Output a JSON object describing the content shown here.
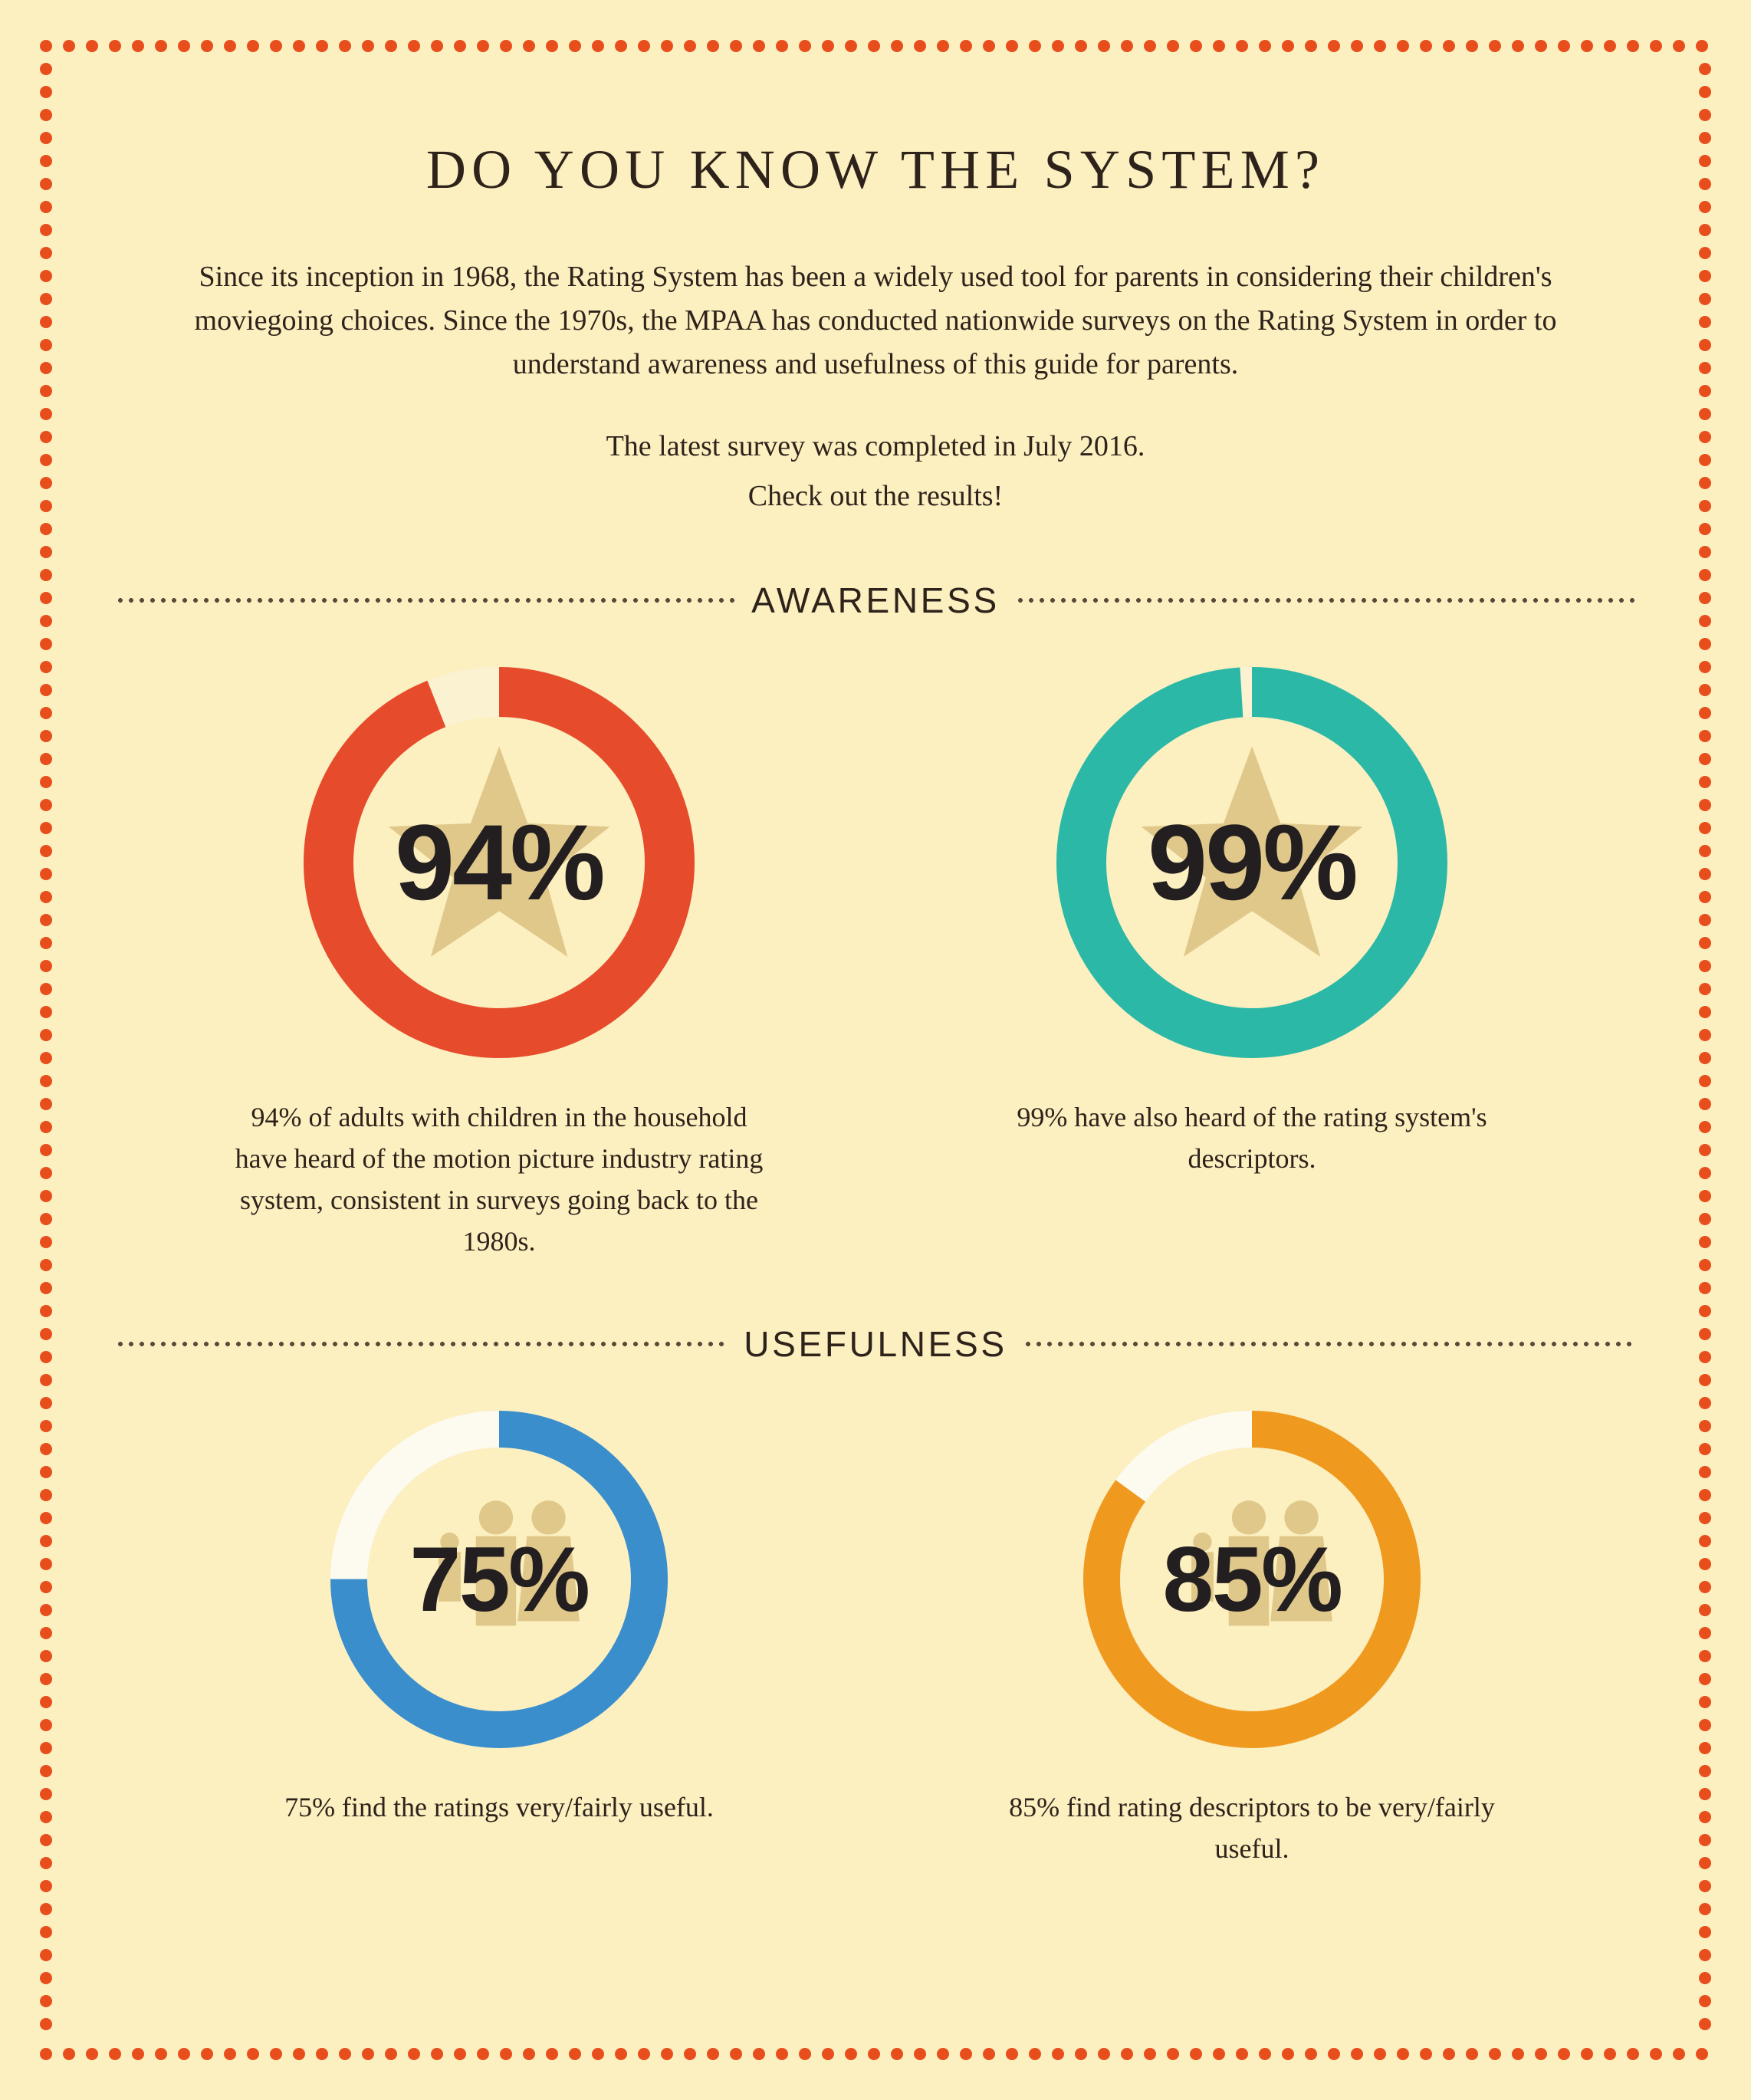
{
  "page": {
    "background_color": "#fcefc0",
    "border_dot_color": "#e84e1c",
    "border_dot_radius": 8,
    "border_dot_gap": 30,
    "text_color": "#2e231b"
  },
  "title": {
    "text": "DO YOU KNOW THE SYSTEM?",
    "fontsize": 72
  },
  "intro": {
    "paragraph1": "Since its inception in 1968, the Rating System has been a widely used tool for parents in considering their children's moviegoing choices. Since the 1970s, the MPAA has conducted nationwide surveys on the Rating System in order to understand awareness and usefulness of this guide for parents.",
    "paragraph2_line1": "The latest survey was completed in July 2016.",
    "paragraph2_line2": "Check out the results!",
    "fontsize": 38
  },
  "section_divider": {
    "dot_color": "#5a4a3a",
    "dot_radius": 3,
    "dot_gap": 14,
    "label_fontsize": 46
  },
  "sections": {
    "awareness": {
      "label": "AWARENESS",
      "icon": "star",
      "icon_color": "#e0c88a",
      "donut_size": 510,
      "donut_stroke": 65,
      "percent_fontsize": 140,
      "caption_fontsize": 36,
      "stats": [
        {
          "percent": 94,
          "percent_label": "94%",
          "ring_color": "#e64b2c",
          "ring_empty_color": "#fbf2d2",
          "caption": "94% of adults with children in the household have heard of the motion picture industry rating system, consistent in surveys going back to the 1980s."
        },
        {
          "percent": 99,
          "percent_label": "99%",
          "ring_color": "#2bb8a6",
          "ring_empty_color": "#fbf2d2",
          "caption": "99% have also heard of the rating system's descriptors."
        }
      ]
    },
    "usefulness": {
      "label": "USEFULNESS",
      "icon": "family",
      "icon_color": "#e0c88a",
      "donut_size": 440,
      "donut_stroke": 48,
      "percent_fontsize": 120,
      "caption_fontsize": 36,
      "stats": [
        {
          "percent": 75,
          "percent_label": "75%",
          "ring_color": "#3a8ecb",
          "ring_empty_color": "#fdfaf0",
          "caption": "75% find the ratings very/fairly useful."
        },
        {
          "percent": 85,
          "percent_label": "85%",
          "ring_color": "#ef9a1f",
          "ring_empty_color": "#fdfaf0",
          "caption": "85% find rating descriptors to be very/fairly useful."
        }
      ]
    }
  }
}
